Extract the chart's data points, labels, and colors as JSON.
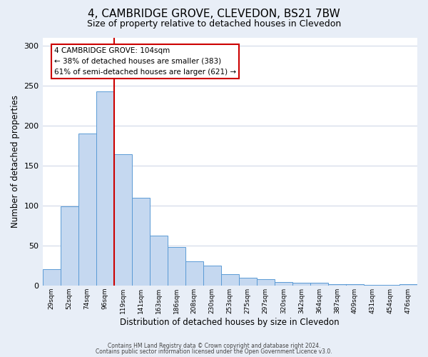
{
  "title": "4, CAMBRIDGE GROVE, CLEVEDON, BS21 7BW",
  "subtitle": "Size of property relative to detached houses in Clevedon",
  "xlabel": "Distribution of detached houses by size in Clevedon",
  "ylabel": "Number of detached properties",
  "bar_labels": [
    "29sqm",
    "52sqm",
    "74sqm",
    "96sqm",
    "119sqm",
    "141sqm",
    "163sqm",
    "186sqm",
    "208sqm",
    "230sqm",
    "253sqm",
    "275sqm",
    "297sqm",
    "320sqm",
    "342sqm",
    "364sqm",
    "387sqm",
    "409sqm",
    "431sqm",
    "454sqm",
    "476sqm"
  ],
  "bar_values": [
    20,
    99,
    190,
    243,
    164,
    110,
    62,
    48,
    30,
    25,
    14,
    10,
    8,
    4,
    3,
    3,
    2,
    2,
    1,
    1,
    2
  ],
  "bar_color": "#c5d8f0",
  "bar_edge_color": "#5b9bd5",
  "ylim": [
    0,
    310
  ],
  "yticks": [
    0,
    50,
    100,
    150,
    200,
    250,
    300
  ],
  "vline_color": "#cc0000",
  "annotation_title": "4 CAMBRIDGE GROVE: 104sqm",
  "annotation_line1": "← 38% of detached houses are smaller (383)",
  "annotation_line2": "61% of semi-detached houses are larger (621) →",
  "annotation_box_color": "#ffffff",
  "annotation_box_edge": "#cc0000",
  "footnote1": "Contains HM Land Registry data © Crown copyright and database right 2024.",
  "footnote2": "Contains public sector information licensed under the Open Government Licence v3.0.",
  "outer_background": "#e8eef7",
  "plot_background": "#ffffff",
  "grid_color": "#d0d8e8",
  "title_fontsize": 11,
  "subtitle_fontsize": 9
}
